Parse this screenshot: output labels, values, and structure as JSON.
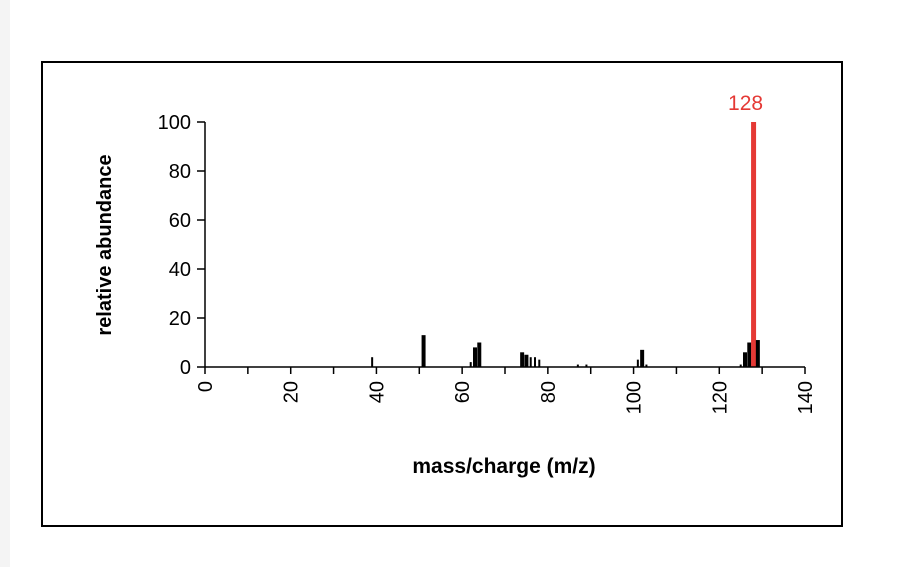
{
  "chart_data": {
    "type": "bar",
    "xlabel": "mass/charge (m/z)",
    "ylabel": "relative abundance",
    "xlim": [
      0,
      140
    ],
    "ylim": [
      0,
      100
    ],
    "x_ticks": [
      0,
      20,
      40,
      60,
      80,
      100,
      120,
      140
    ],
    "y_ticks": [
      0,
      20,
      40,
      60,
      80,
      100
    ],
    "highlight": {
      "x": 128,
      "value": 100,
      "label": "128",
      "color": "#e53935"
    },
    "bar_color": "#000000",
    "peaks": [
      {
        "x": 39,
        "value": 4
      },
      {
        "x": 51,
        "value": 13
      },
      {
        "x": 62,
        "value": 2
      },
      {
        "x": 63,
        "value": 8
      },
      {
        "x": 64,
        "value": 10
      },
      {
        "x": 74,
        "value": 6
      },
      {
        "x": 75,
        "value": 5
      },
      {
        "x": 76,
        "value": 4
      },
      {
        "x": 77,
        "value": 4
      },
      {
        "x": 78,
        "value": 3
      },
      {
        "x": 87,
        "value": 1
      },
      {
        "x": 89,
        "value": 1
      },
      {
        "x": 101,
        "value": 3
      },
      {
        "x": 102,
        "value": 7
      },
      {
        "x": 103,
        "value": 1
      },
      {
        "x": 125,
        "value": 1
      },
      {
        "x": 126,
        "value": 6
      },
      {
        "x": 127,
        "value": 10
      },
      {
        "x": 128,
        "value": 100
      },
      {
        "x": 129,
        "value": 11
      }
    ]
  }
}
